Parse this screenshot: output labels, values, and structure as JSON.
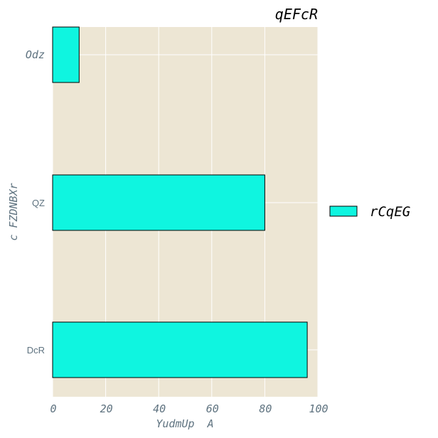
{
  "chart_data": {
    "type": "bar",
    "orientation": "horizontal",
    "title": "qEFcR",
    "xlabel": "YudmUp  A",
    "ylabel": "c FZDNBXr",
    "categories": [
      "Odz",
      "QZ",
      "DcR"
    ],
    "series": [
      {
        "name": "rCqEG",
        "values": [
          10,
          80,
          96
        ]
      }
    ],
    "xlim": [
      0,
      100
    ],
    "xticks": [
      "0",
      "20",
      "40",
      "60",
      "80",
      "100"
    ],
    "grid": true,
    "legend_position": "right",
    "colors": {
      "background": "#ede6d4",
      "bar_fill": "#0ff5e0",
      "bar_edge": "#000000",
      "grid": "#ffffff",
      "tick_text": "#5f7380"
    }
  }
}
